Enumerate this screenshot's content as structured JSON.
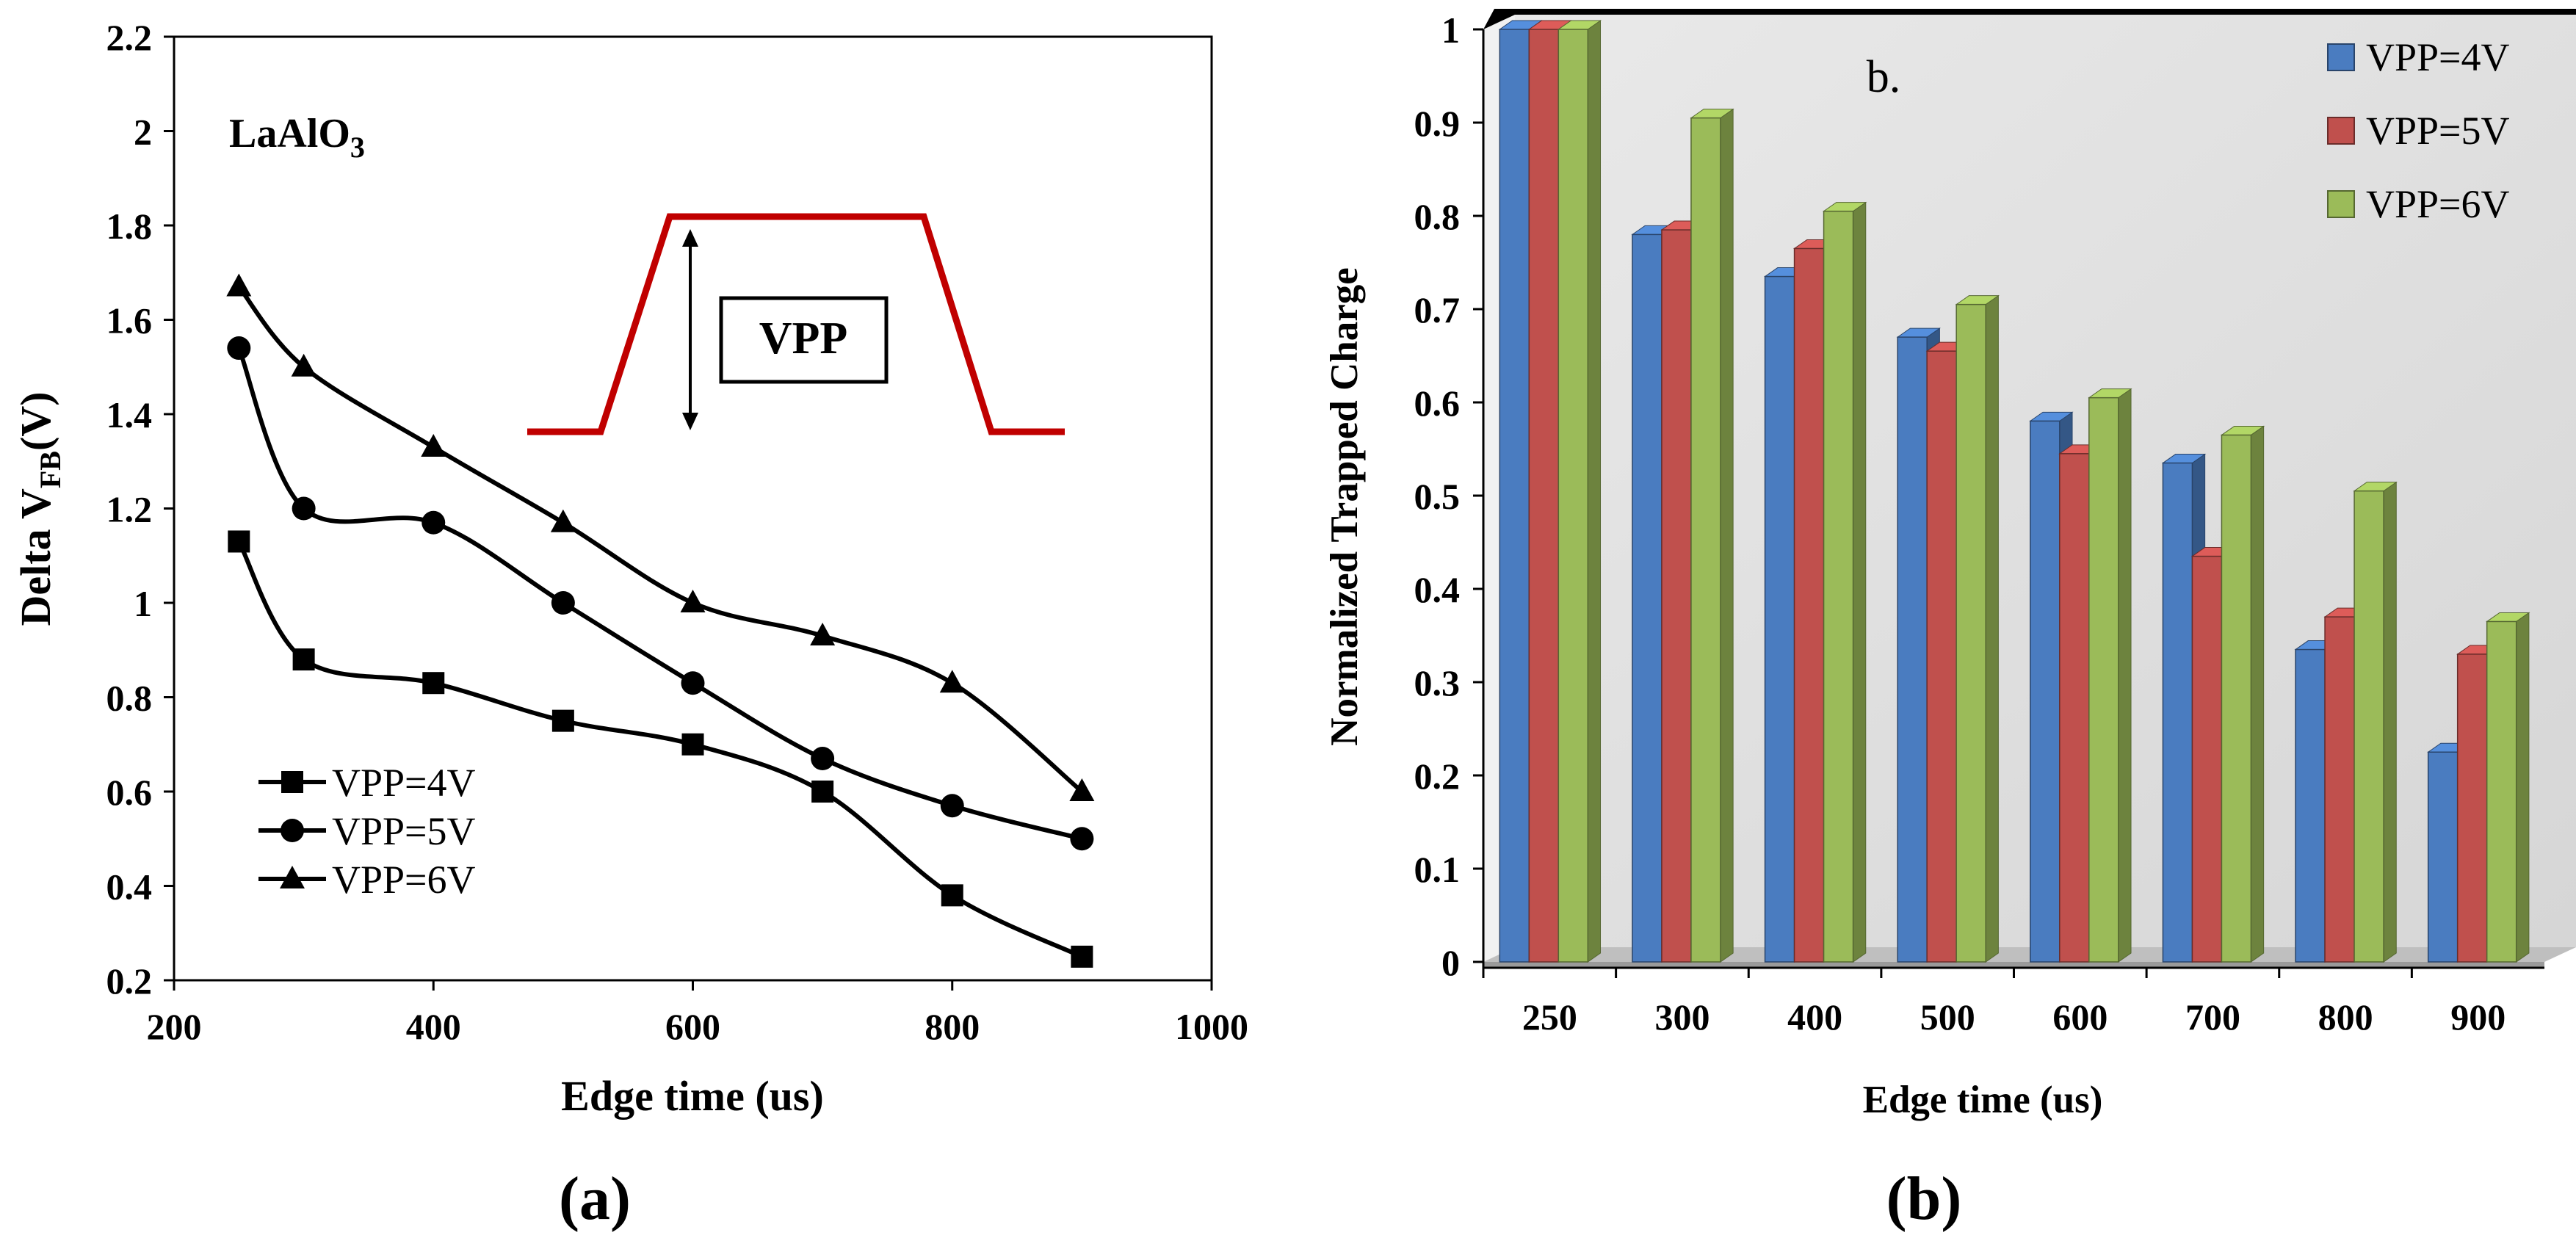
{
  "chart_data": [
    {
      "type": "line",
      "panel_label": "(a)",
      "annotation": "LaAlO",
      "annotation_sub": "3",
      "pulse_label": "VPP",
      "xlabel": "Edge time (us)",
      "ylabel_main": "Delta V",
      "ylabel_sub": "FB",
      "ylabel_tail": "(V)",
      "xlim": [
        200,
        1000
      ],
      "ylim": [
        0.2,
        2.2
      ],
      "x_ticks": [
        "200",
        "400",
        "600",
        "800",
        "1000"
      ],
      "y_ticks": [
        "0.2",
        "0.4",
        "0.6",
        "0.8",
        "1",
        "1.2",
        "1.4",
        "1.6",
        "1.8",
        "2",
        "2.2"
      ],
      "x": [
        250,
        300,
        400,
        500,
        600,
        700,
        800,
        900
      ],
      "series": [
        {
          "name": "VPP=4V",
          "marker": "square",
          "values": [
            1.13,
            0.88,
            0.83,
            0.75,
            0.7,
            0.6,
            0.38,
            0.25
          ]
        },
        {
          "name": "VPP=5V",
          "marker": "circle",
          "values": [
            1.54,
            1.2,
            1.17,
            1.0,
            0.83,
            0.67,
            0.57,
            0.5
          ]
        },
        {
          "name": "VPP=6V",
          "marker": "triangle",
          "values": [
            1.67,
            1.5,
            1.33,
            1.17,
            1.0,
            0.93,
            0.83,
            0.6
          ]
        }
      ]
    },
    {
      "type": "bar",
      "panel_label": "(b)",
      "annotation": "b.",
      "xlabel": "Edge time (us)",
      "ylabel": "Normalized Trapped Charge",
      "ylim": [
        0,
        1
      ],
      "y_ticks": [
        "0",
        "0.1",
        "0.2",
        "0.3",
        "0.4",
        "0.5",
        "0.6",
        "0.7",
        "0.8",
        "0.9",
        "1"
      ],
      "categories": [
        "250",
        "300",
        "400",
        "500",
        "600",
        "700",
        "800",
        "900"
      ],
      "series": [
        {
          "name": "VPP=4V",
          "color": "#4a7cc0",
          "values": [
            1.0,
            0.78,
            0.735,
            0.67,
            0.58,
            0.535,
            0.335,
            0.225
          ]
        },
        {
          "name": "VPP=5V",
          "color": "#c0504d",
          "values": [
            1.0,
            0.785,
            0.765,
            0.655,
            0.545,
            0.435,
            0.37,
            0.33
          ]
        },
        {
          "name": "VPP=6V",
          "color": "#9bbb59",
          "values": [
            1.0,
            0.905,
            0.805,
            0.705,
            0.605,
            0.565,
            0.505,
            0.365
          ]
        }
      ]
    }
  ]
}
